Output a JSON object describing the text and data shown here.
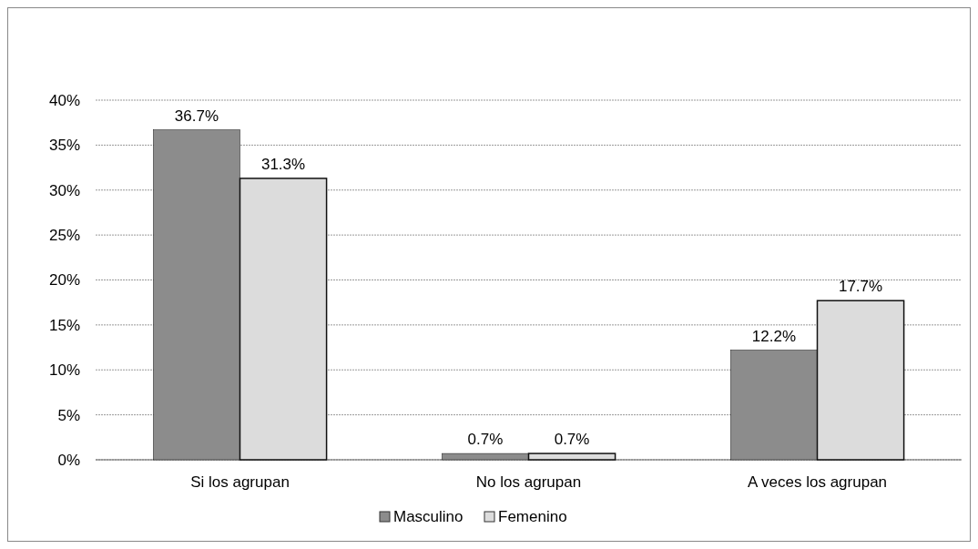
{
  "chart_data": {
    "type": "bar",
    "categories": [
      "Si los agrupan",
      "No los agrupan",
      "A veces los agrupan"
    ],
    "series": [
      {
        "name": "Masculino",
        "color": "#8c8c8c",
        "values": [
          36.7,
          0.7,
          12.2
        ],
        "value_labels": [
          "36.7%",
          "0.7%",
          "12.2%"
        ]
      },
      {
        "name": "Femenino",
        "color": "#dcdcdc",
        "values": [
          31.3,
          0.7,
          17.7
        ],
        "value_labels": [
          "31.3%",
          "0.7%",
          "17.7%"
        ]
      }
    ],
    "ylim": [
      0,
      40
    ],
    "yticks": [
      {
        "value": 0,
        "label": "0%"
      },
      {
        "value": 5,
        "label": "5%"
      },
      {
        "value": 10,
        "label": "10%"
      },
      {
        "value": 15,
        "label": "15%"
      },
      {
        "value": 20,
        "label": "20%"
      },
      {
        "value": 25,
        "label": "25%"
      },
      {
        "value": 30,
        "label": "30%"
      },
      {
        "value": 35,
        "label": "35%"
      },
      {
        "value": 40,
        "label": "40%"
      }
    ],
    "grid": "y",
    "legend": "bottom"
  }
}
